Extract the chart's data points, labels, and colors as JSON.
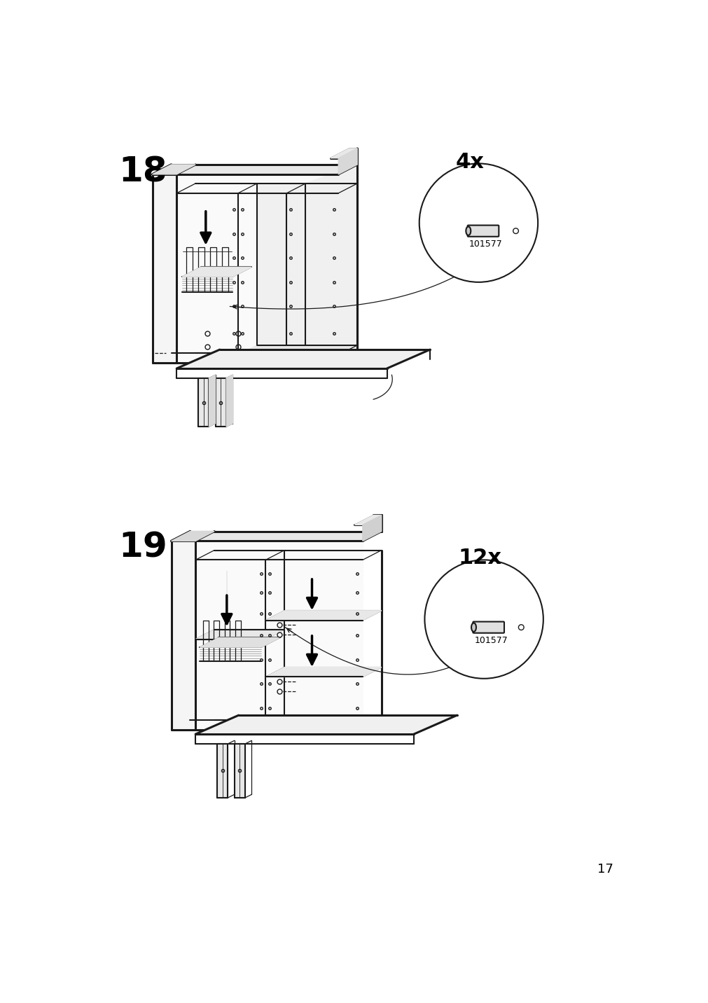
{
  "background_color": "#ffffff",
  "page_number": "17",
  "step18": {
    "label": "18",
    "quantity_label": "4x",
    "part_number": "101577",
    "label_fontsize": 36,
    "qty_fontsize": 22
  },
  "step19": {
    "label": "19",
    "quantity_label": "12x",
    "part_number": "101577",
    "label_fontsize": 36,
    "qty_fontsize": 22
  },
  "line_color": "#1a1a1a",
  "lw_thick": 2.2,
  "lw_main": 1.5,
  "lw_thin": 0.9,
  "lw_verythin": 0.6
}
